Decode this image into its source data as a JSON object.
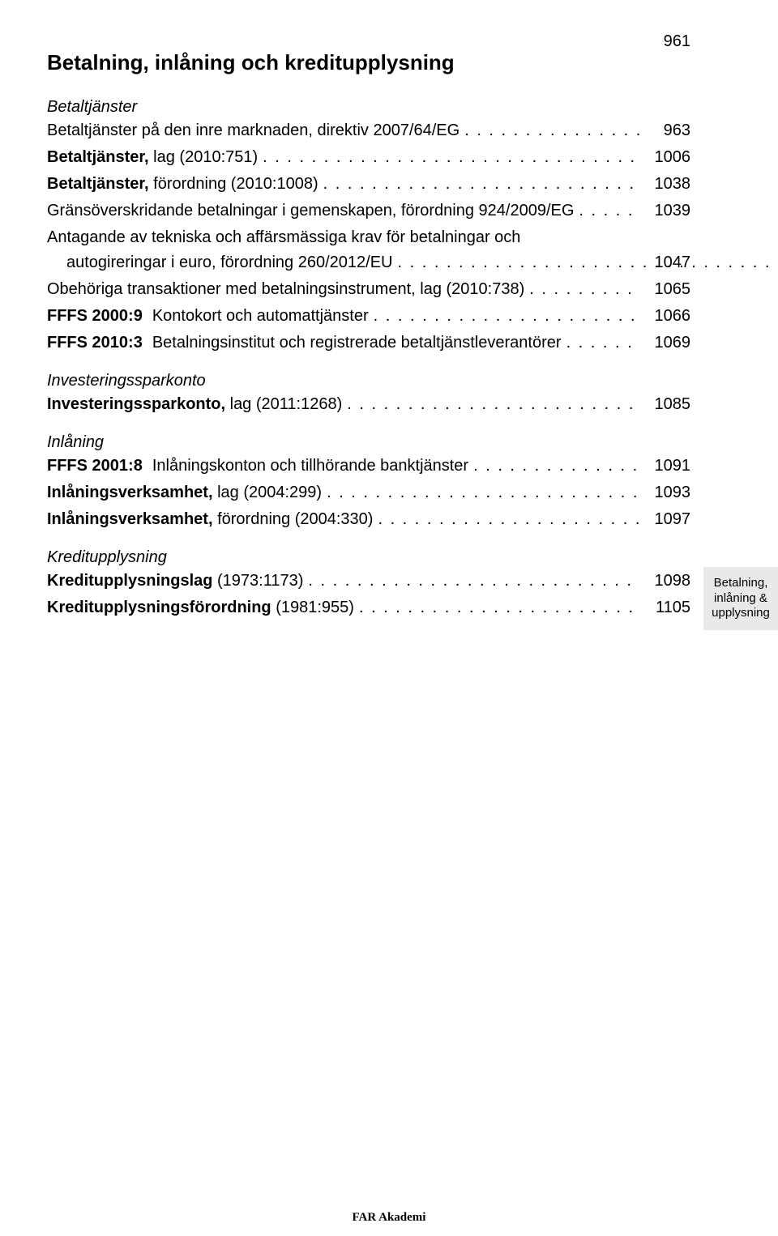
{
  "page_number_top": "961",
  "title": "Betalning, inlåning och kreditupplysning",
  "sections": [
    {
      "heading": "Betaltjänster",
      "entries": [
        {
          "text": "Betaltjänster på den inre marknaden, direktiv 2007/64/EG",
          "page": "963"
        },
        {
          "text_bold": "Betaltjänster,",
          "text_rest": " lag (2010:751)",
          "page": "1006"
        },
        {
          "text_bold": "Betaltjänster,",
          "text_rest": " förordning (2010:1008)",
          "page": "1038"
        },
        {
          "text": "Gränsöverskridande betalningar i gemenskapen, förordning 924/2009/EG",
          "page": "1039"
        },
        {
          "multiline": true,
          "line1": "Antagande av tekniska och affärsmässiga krav för betalningar och",
          "line2": "autogireringar i euro, förordning 260/2012/EU",
          "page": "1047"
        },
        {
          "text": "Obehöriga transaktioner med betalningsinstrument, lag (2010:738)",
          "page": "1065"
        },
        {
          "prefix": "FFFS 2000:9",
          "text": "Kontokort och automattjänster",
          "page": "1066"
        },
        {
          "prefix": "FFFS 2010:3",
          "text": "Betalningsinstitut och registrerade betaltjänstleverantörer",
          "page": "1069"
        }
      ]
    },
    {
      "heading": "Investeringssparkonto",
      "entries": [
        {
          "text_bold": "Investeringssparkonto,",
          "text_rest": " lag (2011:1268)",
          "page": "1085"
        }
      ]
    },
    {
      "heading": "Inlåning",
      "entries": [
        {
          "prefix": "FFFS 2001:8",
          "text": "Inlåningskonton och tillhörande banktjänster",
          "page": "1091"
        },
        {
          "text_bold": "Inlåningsverksamhet,",
          "text_rest": " lag (2004:299)",
          "page": "1093"
        },
        {
          "text_bold": "Inlåningsverksamhet,",
          "text_rest": " förordning (2004:330)",
          "page": "1097"
        }
      ]
    },
    {
      "heading": "Kreditupplysning",
      "entries": [
        {
          "text_bold": "Kreditupplysningslag",
          "text_rest": " (1973:1173)",
          "page": "1098"
        },
        {
          "text_bold": "Kreditupplysningsförordning",
          "text_rest": " (1981:955)",
          "page": "1105"
        }
      ]
    }
  ],
  "side_tab": {
    "line1": "Betalning,",
    "line2": "inlåning &",
    "line3": "upplysning",
    "bg_color": "#e9e9e9"
  },
  "footer": "FAR Akademi",
  "leaders_char": ". . . . . . . . . . . . . . . . . . . . . . . . . . . . . . . . . . . . . . . . . . . . . . . . . . . . . . . . . . . . . . . . . . . . . . . . . . . . . . . . . . . . . . . . . . . . . . . . . . . . . . . . . . . . . . . . . . . . . . . .",
  "colors": {
    "background": "#ffffff",
    "text": "#000000",
    "sidetab_bg": "#e9e9e9"
  }
}
